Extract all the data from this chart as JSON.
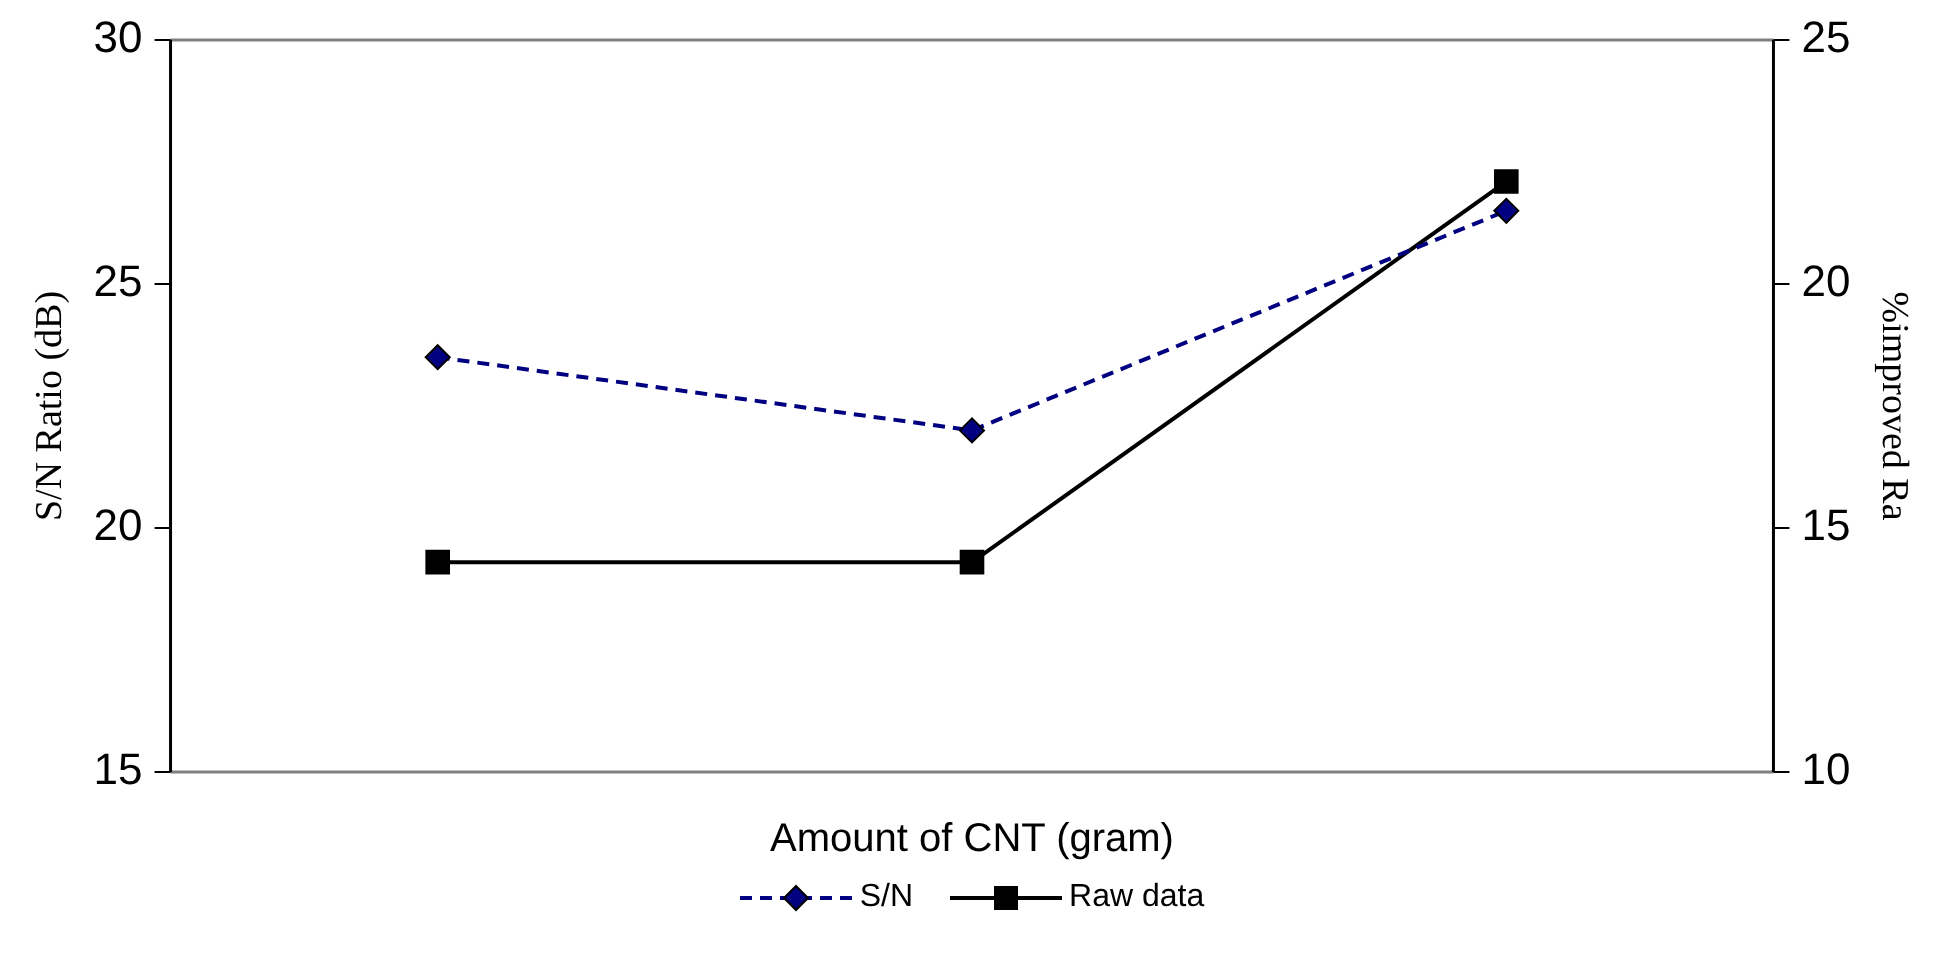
{
  "chart_data": {
    "type": "line",
    "xlabel": "Amount of CNT (gram)",
    "ylabel": "S/N Ratio (dB)",
    "y2label": "%improved Ra",
    "categories": [
      null,
      null,
      null
    ],
    "series": [
      {
        "name": "S/N",
        "color": "#000080",
        "values": [
          23.5,
          22.0,
          26.5
        ],
        "marker": "diamond",
        "line_style": "dashed"
      },
      {
        "name": "Raw data",
        "color": "#000000",
        "values": [
          14.3,
          14.3,
          22.1
        ],
        "marker": "square",
        "line_style": "solid",
        "axis": "y2"
      }
    ],
    "ylim": [
      15,
      30
    ],
    "yticks": [
      15,
      20,
      25,
      30
    ],
    "y2lim": [
      10,
      25
    ],
    "y2ticks": [
      10,
      15,
      20,
      25
    ],
    "grid": false,
    "legend": "bottom",
    "tick_labels": "y"
  }
}
